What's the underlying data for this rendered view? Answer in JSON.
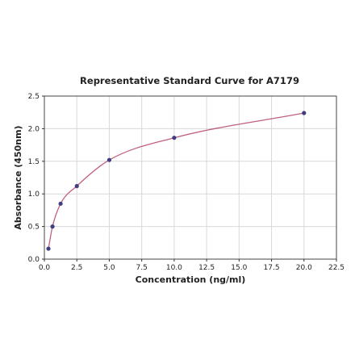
{
  "chart_data": {
    "type": "scatter",
    "title": "Representative Standard Curve for A7179",
    "xlabel": "Concentration (ng/ml)",
    "ylabel": "Absorbance (450nm)",
    "xlim": [
      0,
      22.5
    ],
    "ylim": [
      0,
      2.5
    ],
    "xticks": [
      "0.0",
      "2.5",
      "5.0",
      "7.5",
      "10.0",
      "12.5",
      "15.0",
      "17.5",
      "20.0",
      "22.5"
    ],
    "yticks": [
      "0.0",
      "0.5",
      "1.0",
      "1.5",
      "2.0",
      "2.5"
    ],
    "grid": true,
    "points": [
      {
        "x": 0.312,
        "y": 0.16
      },
      {
        "x": 0.625,
        "y": 0.5
      },
      {
        "x": 1.25,
        "y": 0.85
      },
      {
        "x": 2.5,
        "y": 1.12
      },
      {
        "x": 5.0,
        "y": 1.52
      },
      {
        "x": 10.0,
        "y": 1.86
      },
      {
        "x": 20.0,
        "y": 2.24
      }
    ],
    "colors": {
      "point": "#3d3d80",
      "curve": "#c06080",
      "grid": "#d9d9d9",
      "axis": "#333333"
    }
  }
}
